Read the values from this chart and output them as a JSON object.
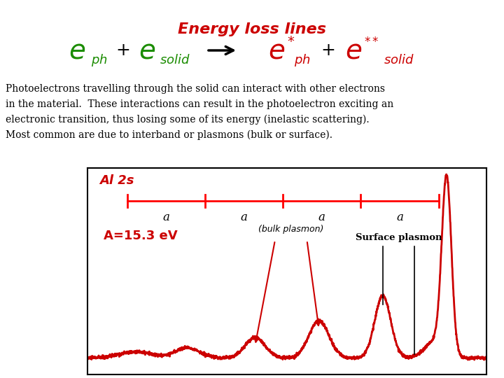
{
  "title": "Energy loss lines",
  "title_color": "#cc0000",
  "bg_color": "#ffffff",
  "body_text_lines": [
    "Photoelectrons travelling through the solid can interact with other electrons",
    "in the material.  These interactions can result in the photoelectron exciting an",
    "electronic transition, thus losing some of its energy (inelastic scattering).",
    "Most common are due to interband or plasmons (bulk or surface)."
  ],
  "green_color": "#1a8c00",
  "red_color": "#cc0000",
  "black_color": "#000000",
  "al2s_label": "Al 2s",
  "A_value": "A=15.3 eV",
  "bulk_label": "(bulk plasmon)",
  "surface_label": "Surface plasmon"
}
